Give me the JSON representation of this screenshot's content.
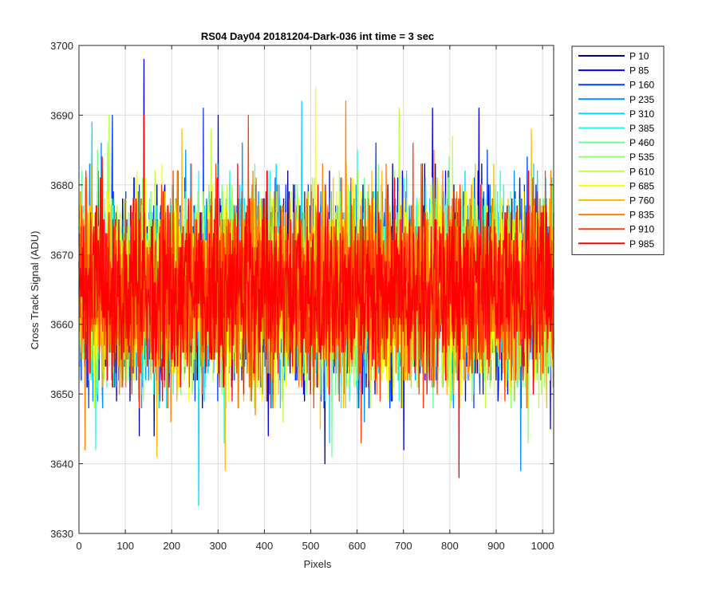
{
  "chart_data": {
    "type": "line",
    "title": "RS04 Day04 20181204-Dark-036 int time = 3 sec",
    "xlabel": "Pixels",
    "ylabel": "Cross Track Signal (ADU)",
    "xlim": [
      0,
      1024
    ],
    "ylim": [
      3630,
      3700
    ],
    "xticks": [
      0,
      100,
      200,
      300,
      400,
      500,
      600,
      700,
      800,
      900,
      1000
    ],
    "yticks": [
      3630,
      3640,
      3650,
      3660,
      3670,
      3680,
      3690,
      3700
    ],
    "grid": true,
    "legend_position": "outside-top-right",
    "n_points": 1024,
    "mean": 3665,
    "series": [
      {
        "name": "P 10",
        "color": "#00008f",
        "spikes": [
          [
            130,
            3644
          ],
          [
            162,
            3644
          ],
          [
            450,
            3682
          ],
          [
            530,
            3640
          ],
          [
            745,
            3683
          ],
          [
            868,
            3683
          ]
        ]
      },
      {
        "name": "P 85",
        "color": "#0000ef",
        "spikes": [
          [
            140,
            3698
          ],
          [
            213,
            3682
          ],
          [
            300,
            3690
          ],
          [
            408,
            3644
          ],
          [
            700,
            3642
          ],
          [
            762,
            3691
          ],
          [
            862,
            3691
          ],
          [
            1016,
            3645
          ]
        ]
      },
      {
        "name": "P 160",
        "color": "#0040ff",
        "spikes": [
          [
            72,
            3690
          ],
          [
            175,
            3676
          ],
          [
            268,
            3691
          ],
          [
            528,
            3648
          ],
          [
            640,
            3686
          ],
          [
            880,
            3685
          ]
        ]
      },
      {
        "name": "P 235",
        "color": "#0090ff",
        "spikes": [
          [
            48,
            3686
          ],
          [
            230,
            3685
          ],
          [
            352,
            3686
          ],
          [
            615,
            3646
          ],
          [
            952,
            3639
          ]
        ]
      },
      {
        "name": "P 310",
        "color": "#00d8ff",
        "spikes": [
          [
            28,
            3689
          ],
          [
            258,
            3634
          ],
          [
            480,
            3692
          ],
          [
            540,
            3643
          ],
          [
            980,
            3683
          ]
        ]
      },
      {
        "name": "P 385",
        "color": "#20ffdf",
        "spikes": [
          [
            36,
            3642
          ],
          [
            313,
            3643
          ],
          [
            600,
            3685
          ],
          [
            938,
            3649
          ]
        ]
      },
      {
        "name": "P 460",
        "color": "#70ff8f",
        "spikes": [
          [
            40,
            3685
          ],
          [
            470,
            3680
          ],
          [
            545,
            3641
          ],
          [
            740,
            3683
          ]
        ]
      },
      {
        "name": "P 535",
        "color": "#90ff70",
        "spikes": [
          [
            62,
            3686
          ],
          [
            680,
            3682
          ],
          [
            968,
            3643
          ]
        ]
      },
      {
        "name": "P 610",
        "color": "#c0ff3f",
        "spikes": [
          [
            65,
            3690
          ],
          [
            285,
            3688
          ],
          [
            440,
            3646
          ],
          [
            690,
            3691
          ],
          [
            805,
            3687
          ]
        ]
      },
      {
        "name": "P 685",
        "color": "#ffff00",
        "spikes": [
          [
            168,
            3646
          ],
          [
            510,
            3694
          ],
          [
            655,
            3653
          ],
          [
            895,
            3650
          ]
        ]
      },
      {
        "name": "P 760",
        "color": "#ffbf00",
        "spikes": [
          [
            168,
            3641
          ],
          [
            222,
            3688
          ],
          [
            315,
            3639
          ],
          [
            520,
            3645
          ],
          [
            975,
            3688
          ]
        ]
      },
      {
        "name": "P 835",
        "color": "#ff8000",
        "spikes": [
          [
            13,
            3642
          ],
          [
            198,
            3646
          ],
          [
            380,
            3647
          ],
          [
            575,
            3692
          ],
          [
            765,
            3685
          ]
        ]
      },
      {
        "name": "P 910",
        "color": "#ff4000",
        "spikes": [
          [
            203,
            3682
          ],
          [
            365,
            3690
          ],
          [
            608,
            3643
          ],
          [
            720,
            3686
          ],
          [
            1005,
            3682
          ]
        ]
      },
      {
        "name": "P 985",
        "color": "#ff0000",
        "spikes": [
          [
            140,
            3690
          ],
          [
            342,
            3683
          ],
          [
            405,
            3682
          ],
          [
            515,
            3680
          ],
          [
            740,
            3683
          ],
          [
            819,
            3638
          ]
        ]
      }
    ]
  }
}
